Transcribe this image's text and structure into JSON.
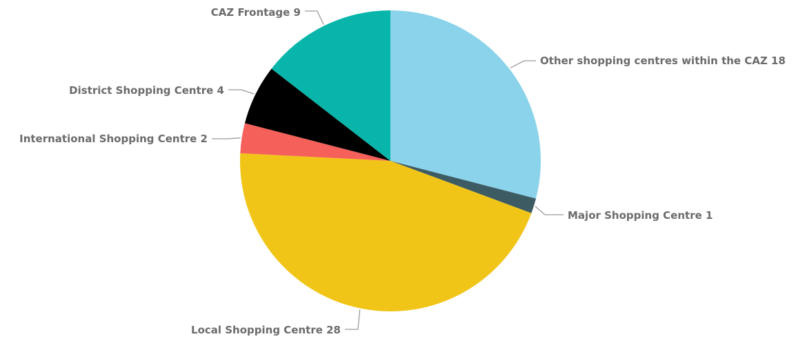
{
  "chart_data": {
    "type": "pie",
    "categories": [
      "Other shopping centres within the CAZ",
      "Major Shopping Centre",
      "Local Shopping Centre",
      "International Shopping Centre",
      "District Shopping Centre",
      "CAZ Frontage"
    ],
    "values": [
      18,
      1,
      28,
      2,
      4,
      9
    ],
    "labels": [
      "Other shopping centres within the CAZ 18",
      "Major Shopping Centre 1",
      "Local Shopping Centre 28",
      "International Shopping Centre 2",
      "District Shopping Centre 4",
      "CAZ Frontage 9"
    ],
    "colors": [
      "#8ad3eb",
      "#3c5b63",
      "#f1c518",
      "#f5605a",
      "#000000",
      "#08b5aa"
    ],
    "start_angle_deg": 0,
    "direction": "clockwise",
    "legend": "none",
    "title": ""
  }
}
